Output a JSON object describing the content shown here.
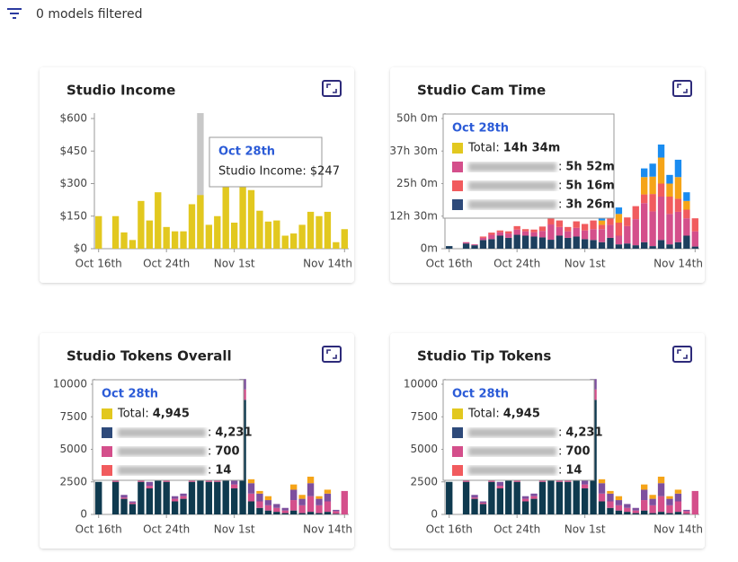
{
  "header": {
    "filter_label": "0 models filtered"
  },
  "cards": [
    {
      "title": "Studio Income",
      "chart": {
        "type": "bar",
        "color": "#e2c81f",
        "categories": [
          "Oct 16th",
          null,
          null,
          null,
          null,
          null,
          null,
          null,
          "Oct 24th",
          null,
          null,
          null,
          null,
          null,
          null,
          null,
          "Nov 1st",
          null,
          null,
          null,
          null,
          null,
          null,
          null,
          null,
          null,
          null,
          null,
          null,
          "Nov 14th"
        ],
        "values": [
          150,
          0,
          150,
          75,
          40,
          220,
          130,
          260,
          100,
          80,
          80,
          205,
          247,
          110,
          150,
          300,
          120,
          300,
          270,
          175,
          125,
          130,
          60,
          70,
          110,
          170,
          150,
          170,
          30,
          90
        ],
        "ylim": [
          0,
          600
        ],
        "yticks": [
          {
            "value": 0,
            "label": "$0"
          },
          {
            "value": 150,
            "label": "$150"
          },
          {
            "value": 300,
            "label": "$300"
          },
          {
            "value": 450,
            "label": "$450"
          },
          {
            "value": 600,
            "label": "$600"
          }
        ]
      },
      "tooltip": {
        "title": "Oct 28th",
        "rows": [
          {
            "label": "Studio Income: $247"
          }
        ]
      }
    },
    {
      "title": "Studio Cam Time",
      "chart": {
        "type": "stacked_bar",
        "categories": [
          "Oct 16th",
          null,
          null,
          null,
          null,
          null,
          null,
          null,
          "Oct 24th",
          null,
          null,
          null,
          null,
          null,
          null,
          null,
          "Nov 1st",
          null,
          null,
          null,
          null,
          null,
          null,
          null,
          null,
          null,
          null,
          null,
          null,
          "Nov 14th"
        ],
        "series": [
          {
            "color": "#1d3f5e",
            "values": [
              60,
              0,
              120,
              80,
              200,
              220,
              300,
              250,
              320,
              300,
              280,
              260,
              206,
              300,
              250,
              280,
              220,
              200,
              150,
              250,
              100,
              120,
              80,
              150,
              60,
              200,
              100,
              150,
              300,
              50
            ]
          },
          {
            "color": "#d44f8b",
            "values": [
              0,
              0,
              30,
              20,
              50,
              100,
              80,
              100,
              120,
              100,
              100,
              150,
              352,
              200,
              150,
              200,
              200,
              250,
              300,
              300,
              200,
              400,
              600,
              900,
              800,
              1000,
              700,
              700,
              400,
              350
            ]
          },
          {
            "color": "#f15b5e",
            "values": [
              0,
              0,
              0,
              0,
              30,
              50,
              40,
              50,
              80,
              50,
              60,
              100,
              316,
              150,
              100,
              150,
              150,
              200,
              100,
              200,
              300,
              200,
              300,
              200,
              400,
              300,
              400,
              300,
              200,
              300
            ]
          },
          {
            "color": "#f5a418",
            "values": [
              0,
              0,
              0,
              0,
              0,
              0,
              0,
              0,
              0,
              0,
              0,
              0,
              0,
              0,
              0,
              0,
              0,
              0,
              100,
              100,
              200,
              0,
              0,
              400,
              400,
              600,
              300,
              500,
              200,
              0
            ]
          },
          {
            "color": "#1a8cf0",
            "values": [
              0,
              0,
              0,
              0,
              0,
              0,
              0,
              0,
              0,
              0,
              0,
              0,
              0,
              0,
              0,
              0,
              0,
              0,
              50,
              150,
              150,
              0,
              0,
              200,
              300,
              300,
              200,
              400,
              200,
              0
            ]
          }
        ],
        "ylim": [
          0,
          3000
        ],
        "yticks": [
          {
            "value": 0,
            "label": "0m"
          },
          {
            "value": 750,
            "label": "12h 30m"
          },
          {
            "value": 1500,
            "label": "25h 0m"
          },
          {
            "value": 2250,
            "label": "37h 30m"
          },
          {
            "value": 3000,
            "label": "50h 0m"
          }
        ]
      },
      "tooltip": {
        "title": "Oct 28th",
        "rows": [
          {
            "color": "#e2c81f",
            "label": "Total:",
            "value": "14h 34m"
          },
          {
            "color": "#d44f8b",
            "label": ":",
            "value": "5h 52m",
            "blurred": true
          },
          {
            "color": "#f15b5e",
            "label": ":",
            "value": "5h 16m",
            "blurred": true
          },
          {
            "color": "#2e4a7a",
            "label": ":",
            "value": "3h 26m",
            "blurred": true
          }
        ]
      }
    },
    {
      "title": "Studio Tokens Overall",
      "chart": {
        "type": "stacked_bar",
        "categories": [
          "Oct 16th",
          null,
          null,
          null,
          null,
          null,
          null,
          null,
          "Oct 24th",
          null,
          null,
          null,
          null,
          null,
          null,
          null,
          "Nov 1st",
          null,
          null,
          null,
          null,
          null,
          null,
          null,
          null,
          null,
          null,
          null,
          null,
          "Nov 14th"
        ],
        "series": [
          {
            "color": "#0f3a4f",
            "values": [
              2500,
              0,
              2500,
              1200,
              800,
              2500,
              2000,
              4000,
              2500,
              1000,
              1200,
              2500,
              4231,
              2500,
              2500,
              3000,
              2000,
              8800,
              1000,
              500,
              300,
              200,
              100,
              300,
              100,
              200,
              100,
              200,
              50,
              0
            ]
          },
          {
            "color": "#d44f8b",
            "values": [
              0,
              0,
              200,
              100,
              100,
              300,
              200,
              400,
              300,
              200,
              200,
              300,
              700,
              300,
              300,
              400,
              300,
              800,
              600,
              500,
              400,
              300,
              200,
              800,
              600,
              1200,
              600,
              800,
              200,
              1800
            ]
          },
          {
            "color": "#f15b5e",
            "values": [
              0,
              0,
              0,
              0,
              0,
              0,
              0,
              0,
              0,
              0,
              0,
              0,
              14,
              0,
              0,
              0,
              0,
              0,
              0,
              0,
              0,
              0,
              0,
              0,
              0,
              0,
              0,
              0,
              0,
              0
            ]
          },
          {
            "color": "#7d4f9e",
            "values": [
              0,
              0,
              300,
              200,
              100,
              400,
              300,
              500,
              300,
              200,
              200,
              300,
              0,
              400,
              300,
              500,
              400,
              800,
              800,
              600,
              400,
              300,
              200,
              800,
              500,
              1000,
              500,
              600,
              100,
              0
            ]
          },
          {
            "color": "#f5a418",
            "values": [
              0,
              0,
              0,
              0,
              0,
              0,
              0,
              0,
              0,
              0,
              0,
              0,
              0,
              0,
              0,
              0,
              0,
              0,
              300,
              200,
              300,
              0,
              0,
              400,
              300,
              500,
              200,
              300,
              0,
              0
            ]
          }
        ],
        "ylim": [
          0,
          10000
        ],
        "yticks": [
          0,
          2500,
          5000,
          7500,
          10000
        ]
      },
      "tooltip": {
        "title": "Oct 28th",
        "rows": [
          {
            "color": "#e2c81f",
            "label": "Total:",
            "value": "4,945"
          },
          {
            "color": "#2e4a7a",
            "label": ":",
            "value": "4,231",
            "blurred": true
          },
          {
            "color": "#d44f8b",
            "label": ":",
            "value": "700",
            "blurred": true
          },
          {
            "color": "#f15b5e",
            "label": ":",
            "value": "14",
            "blurred": true
          }
        ]
      }
    },
    {
      "title": "Studio Tip Tokens",
      "chart": {
        "type": "stacked_bar",
        "categories": [
          "Oct 16th",
          null,
          null,
          null,
          null,
          null,
          null,
          null,
          "Oct 24th",
          null,
          null,
          null,
          null,
          null,
          null,
          null,
          "Nov 1st",
          null,
          null,
          null,
          null,
          null,
          null,
          null,
          null,
          null,
          null,
          null,
          null,
          "Nov 14th"
        ],
        "series": [
          {
            "color": "#0f3a4f",
            "values": [
              2500,
              0,
              2500,
              1200,
              800,
              2500,
              2000,
              4000,
              2500,
              1000,
              1200,
              2500,
              4231,
              2500,
              2500,
              3000,
              2000,
              8800,
              1000,
              500,
              300,
              200,
              100,
              300,
              100,
              200,
              100,
              200,
              50,
              0
            ]
          },
          {
            "color": "#d44f8b",
            "values": [
              0,
              0,
              200,
              100,
              100,
              300,
              200,
              400,
              300,
              200,
              200,
              300,
              700,
              300,
              300,
              400,
              300,
              800,
              600,
              500,
              400,
              300,
              200,
              800,
              600,
              1200,
              600,
              800,
              200,
              1800
            ]
          },
          {
            "color": "#f15b5e",
            "values": [
              0,
              0,
              0,
              0,
              0,
              0,
              0,
              0,
              0,
              0,
              0,
              0,
              14,
              0,
              0,
              0,
              0,
              0,
              0,
              0,
              0,
              0,
              0,
              0,
              0,
              0,
              0,
              0,
              0,
              0
            ]
          },
          {
            "color": "#7d4f9e",
            "values": [
              0,
              0,
              300,
              200,
              100,
              400,
              300,
              500,
              300,
              200,
              200,
              300,
              0,
              400,
              300,
              500,
              400,
              800,
              800,
              600,
              400,
              300,
              200,
              800,
              500,
              1000,
              500,
              600,
              100,
              0
            ]
          },
          {
            "color": "#f5a418",
            "values": [
              0,
              0,
              0,
              0,
              0,
              0,
              0,
              0,
              0,
              0,
              0,
              0,
              0,
              0,
              0,
              0,
              0,
              0,
              300,
              200,
              300,
              0,
              0,
              400,
              300,
              500,
              200,
              300,
              0,
              0
            ]
          }
        ],
        "ylim": [
          0,
          10000
        ],
        "yticks": [
          0,
          2500,
          5000,
          7500,
          10000
        ]
      },
      "tooltip": {
        "title": "Oct 28th",
        "rows": [
          {
            "color": "#e2c81f",
            "label": "Total:",
            "value": "4,945"
          },
          {
            "color": "#2e4a7a",
            "label": ":",
            "value": "4,231",
            "blurred": true
          },
          {
            "color": "#d44f8b",
            "label": ":",
            "value": "700",
            "blurred": true
          },
          {
            "color": "#f15b5e",
            "label": ":",
            "value": "14",
            "blurred": true
          }
        ]
      }
    }
  ]
}
